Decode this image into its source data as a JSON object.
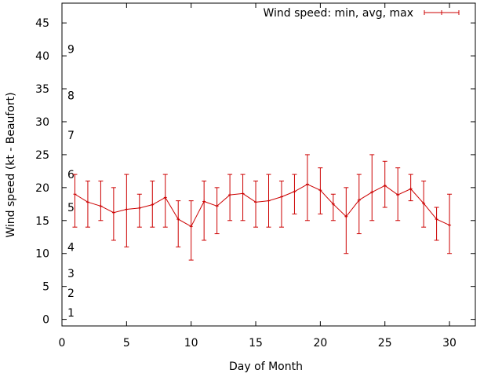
{
  "chart_data": {
    "type": "line",
    "title": "",
    "xlabel": "Day of Month",
    "ylabel": "Wind speed (kt - Beaufort)",
    "xlim": [
      0,
      32
    ],
    "ylim": [
      -1,
      48
    ],
    "xticks": [
      0,
      5,
      10,
      15,
      20,
      25,
      30
    ],
    "yticks": [
      0,
      5,
      10,
      15,
      20,
      25,
      30,
      35,
      40,
      45
    ],
    "grid": false,
    "legend_position": "top-right",
    "beaufort_labels": [
      {
        "label": "1",
        "y": 1
      },
      {
        "label": "2",
        "y": 4
      },
      {
        "label": "3",
        "y": 7
      },
      {
        "label": "4",
        "y": 11
      },
      {
        "label": "5",
        "y": 17
      },
      {
        "label": "6",
        "y": 22
      },
      {
        "label": "7",
        "y": 28
      },
      {
        "label": "8",
        "y": 34
      },
      {
        "label": "9",
        "y": 41
      }
    ],
    "series": [
      {
        "name": "Wind speed: min, avg, max",
        "color": "#cc0000",
        "points": [
          {
            "x": 1,
            "avg": 19.0,
            "min": 14,
            "max": 22
          },
          {
            "x": 2,
            "avg": 17.8,
            "min": 14,
            "max": 21
          },
          {
            "x": 3,
            "avg": 17.2,
            "min": 15,
            "max": 21
          },
          {
            "x": 4,
            "avg": 16.2,
            "min": 12,
            "max": 20
          },
          {
            "x": 5,
            "avg": 16.7,
            "min": 11,
            "max": 22
          },
          {
            "x": 6,
            "avg": 16.9,
            "min": 14,
            "max": 19
          },
          {
            "x": 7,
            "avg": 17.4,
            "min": 14,
            "max": 21
          },
          {
            "x": 8,
            "avg": 18.5,
            "min": 14,
            "max": 22
          },
          {
            "x": 9,
            "avg": 15.2,
            "min": 11,
            "max": 18
          },
          {
            "x": 10,
            "avg": 14.1,
            "min": 9,
            "max": 18
          },
          {
            "x": 11,
            "avg": 17.9,
            "min": 12,
            "max": 21
          },
          {
            "x": 12,
            "avg": 17.2,
            "min": 13,
            "max": 20
          },
          {
            "x": 13,
            "avg": 18.9,
            "min": 15,
            "max": 22
          },
          {
            "x": 14,
            "avg": 19.1,
            "min": 15,
            "max": 22
          },
          {
            "x": 15,
            "avg": 17.8,
            "min": 14,
            "max": 21
          },
          {
            "x": 16,
            "avg": 18.0,
            "min": 14,
            "max": 22
          },
          {
            "x": 17,
            "avg": 18.6,
            "min": 14,
            "max": 21
          },
          {
            "x": 18,
            "avg": 19.4,
            "min": 16,
            "max": 22
          },
          {
            "x": 19,
            "avg": 20.5,
            "min": 15,
            "max": 25
          },
          {
            "x": 20,
            "avg": 19.6,
            "min": 16,
            "max": 23
          },
          {
            "x": 21,
            "avg": 17.5,
            "min": 15,
            "max": 19
          },
          {
            "x": 22,
            "avg": 15.6,
            "min": 10,
            "max": 20
          },
          {
            "x": 23,
            "avg": 18.1,
            "min": 13,
            "max": 22
          },
          {
            "x": 24,
            "avg": 19.3,
            "min": 15,
            "max": 25
          },
          {
            "x": 25,
            "avg": 20.3,
            "min": 17,
            "max": 24
          },
          {
            "x": 26,
            "avg": 18.9,
            "min": 15,
            "max": 23
          },
          {
            "x": 27,
            "avg": 19.8,
            "min": 18,
            "max": 22
          },
          {
            "x": 28,
            "avg": 17.6,
            "min": 14,
            "max": 21
          },
          {
            "x": 29,
            "avg": 15.2,
            "min": 12,
            "max": 17
          },
          {
            "x": 30,
            "avg": 14.3,
            "min": 10,
            "max": 19
          }
        ]
      }
    ]
  }
}
